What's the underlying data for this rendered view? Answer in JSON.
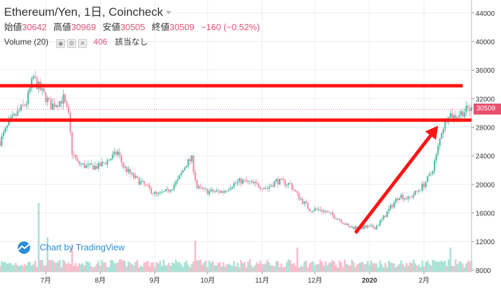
{
  "legend": {
    "symbol": "Ethereum/Yen",
    "interval": "1日",
    "exchange": "Coincheck",
    "ohlc": [
      {
        "label": "始値",
        "value": "30642"
      },
      {
        "label": "高値",
        "value": "30969"
      },
      {
        "label": "安値",
        "value": "30505"
      },
      {
        "label": "終値",
        "value": "30509"
      }
    ],
    "change": "−160 (−0.52%)",
    "volume_label": "Volume (20)",
    "volume_value": "406",
    "volume_extra": "該当なし"
  },
  "watermark": "Chart by TradingView",
  "colors": {
    "up": "#53b9a8",
    "down": "#ef8fa8",
    "vol_up": "#a8e2d6",
    "vol_down": "#f7bdcb",
    "annotation": "#ff1414",
    "last_price": "#e8506f",
    "grid": "#eeeeee"
  },
  "chart_data": {
    "type": "candlestick",
    "y_axis": {
      "ticks": [
        "44000",
        "40000",
        "36000",
        "32000",
        "28000",
        "24000",
        "20000",
        "16000",
        "12000",
        "8000"
      ],
      "tick_values": [
        44000,
        40000,
        36000,
        32000,
        28000,
        24000,
        20000,
        16000,
        12000,
        8000
      ],
      "range": [
        7800,
        45800
      ]
    },
    "x_axis": {
      "ticks": [
        "7月",
        "8月",
        "9月",
        "10月",
        "11月",
        "12月",
        "2020",
        "2月"
      ],
      "tick_dates": [
        "2019-07-01",
        "2019-08-01",
        "2019-09-01",
        "2019-10-01",
        "2019-11-01",
        "2019-12-01",
        "2020-01-01",
        "2020-02-01"
      ],
      "range": [
        "2019-06-05",
        "2020-02-28"
      ]
    },
    "last_price_label": "30509",
    "last_price": 30509,
    "price_path": [
      [
        "2019-06-05",
        26000
      ],
      [
        "2019-06-10",
        28500
      ],
      [
        "2019-06-15",
        30000
      ],
      [
        "2019-06-20",
        31500
      ],
      [
        "2019-06-24",
        35000
      ],
      [
        "2019-06-26",
        34000
      ],
      [
        "2019-06-30",
        32500
      ],
      [
        "2019-07-04",
        31000
      ],
      [
        "2019-07-08",
        31500
      ],
      [
        "2019-07-11",
        32000
      ],
      [
        "2019-07-14",
        29500
      ],
      [
        "2019-07-16",
        24500
      ],
      [
        "2019-07-19",
        23000
      ],
      [
        "2019-07-24",
        22500
      ],
      [
        "2019-07-31",
        22500
      ],
      [
        "2019-08-06",
        23500
      ],
      [
        "2019-08-11",
        24500
      ],
      [
        "2019-08-14",
        22500
      ],
      [
        "2019-08-20",
        21000
      ],
      [
        "2019-08-28",
        19500
      ],
      [
        "2019-09-02",
        18500
      ],
      [
        "2019-09-08",
        19000
      ],
      [
        "2019-09-14",
        20500
      ],
      [
        "2019-09-19",
        23000
      ],
      [
        "2019-09-22",
        23500
      ],
      [
        "2019-09-25",
        19500
      ],
      [
        "2019-10-01",
        19000
      ],
      [
        "2019-10-10",
        19000
      ],
      [
        "2019-10-15",
        20000
      ],
      [
        "2019-10-20",
        20500
      ],
      [
        "2019-10-28",
        20000
      ],
      [
        "2019-11-04",
        19500
      ],
      [
        "2019-11-09",
        20500
      ],
      [
        "2019-11-17",
        20000
      ],
      [
        "2019-11-21",
        18500
      ],
      [
        "2019-11-28",
        16500
      ],
      [
        "2019-12-04",
        16500
      ],
      [
        "2019-12-10",
        15800
      ],
      [
        "2019-12-16",
        15000
      ],
      [
        "2019-12-20",
        14000
      ],
      [
        "2019-12-26",
        14000
      ],
      [
        "2020-01-04",
        14000
      ],
      [
        "2020-01-08",
        15000
      ],
      [
        "2020-01-15",
        17500
      ],
      [
        "2020-01-18",
        18500
      ],
      [
        "2020-01-23",
        18000
      ],
      [
        "2020-01-28",
        19000
      ],
      [
        "2020-02-01",
        20000
      ],
      [
        "2020-02-05",
        21500
      ],
      [
        "2020-02-08",
        24000
      ],
      [
        "2020-02-11",
        27500
      ],
      [
        "2020-02-15",
        30000
      ],
      [
        "2020-02-18",
        29500
      ],
      [
        "2020-02-22",
        30000
      ],
      [
        "2020-02-26",
        30509
      ]
    ],
    "volume_spikes": [
      [
        "2019-06-27",
        1.0
      ],
      [
        "2019-07-02",
        0.5
      ],
      [
        "2019-07-16",
        0.4
      ],
      [
        "2019-09-24",
        0.45
      ],
      [
        "2019-11-21",
        0.35
      ],
      [
        "2020-02-16",
        0.35
      ]
    ],
    "annotations": [
      {
        "kind": "horizontal-line",
        "price": 33800,
        "from": "2019-06-05",
        "to": "2020-02-23"
      },
      {
        "kind": "horizontal-line",
        "price": 29000,
        "from": "2019-06-05",
        "to": "2020-02-28"
      },
      {
        "kind": "arrow",
        "from": [
          "2019-12-24",
          13200
        ],
        "to": [
          "2020-02-09",
          28200
        ]
      }
    ]
  }
}
